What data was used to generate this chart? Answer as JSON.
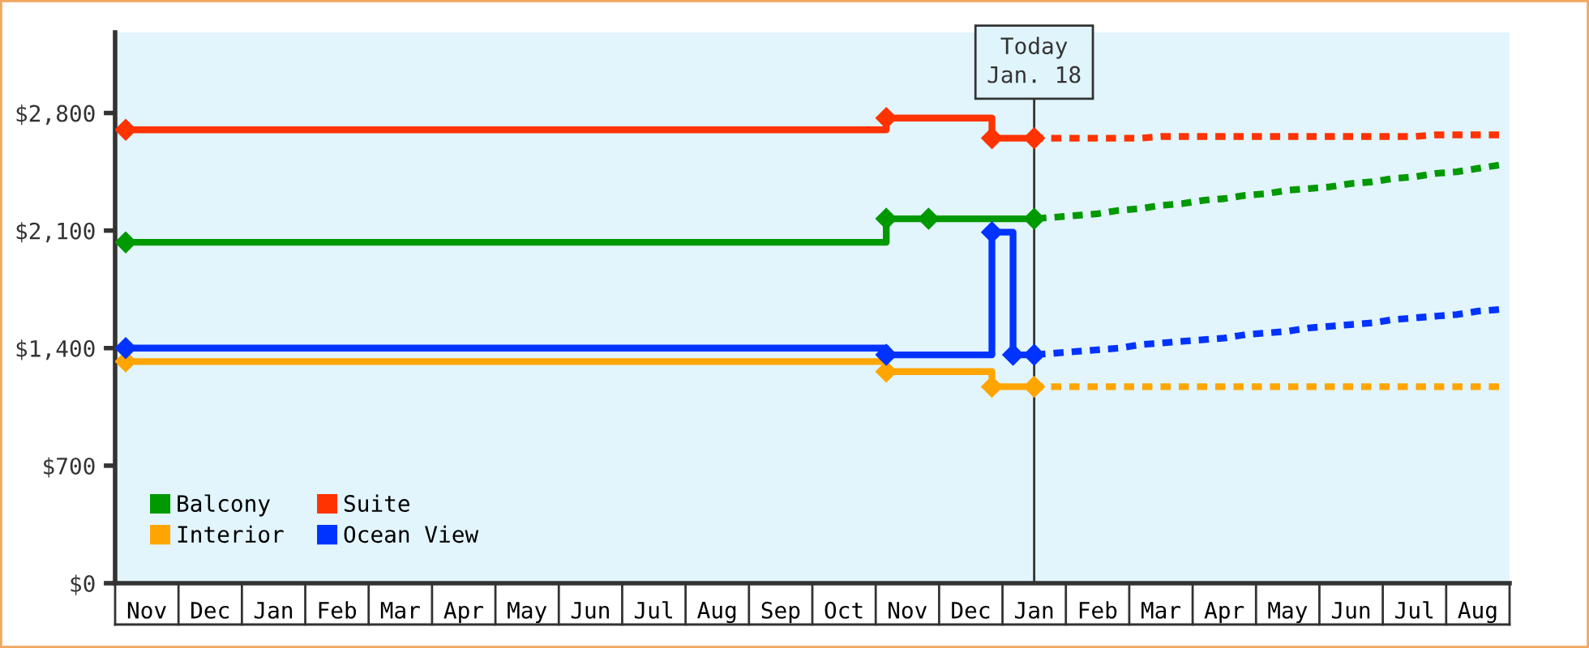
{
  "chart_data": {
    "type": "step",
    "categories": [
      null,
      "Nov",
      null,
      null,
      "Dec",
      null,
      null,
      "Jan",
      null,
      null,
      "Feb",
      null,
      null,
      "Mar",
      null,
      null,
      "Apr",
      null,
      null,
      "May",
      null,
      null,
      "Jun",
      null,
      null,
      "Jul",
      null,
      null,
      "Aug",
      null,
      null,
      "Sep",
      null,
      null,
      "Oct",
      null,
      null,
      "Nov",
      null,
      null,
      "Dec",
      null,
      null,
      "Jan",
      null,
      null,
      "Feb",
      null,
      null,
      "Mar",
      null,
      null,
      "Apr",
      null,
      null,
      "May",
      null,
      null,
      "Jun",
      null,
      null,
      "Jul",
      null,
      null,
      "Aug",
      null
    ],
    "series": [
      {
        "name": "Balcony",
        "color": "#009900",
        "values": [
          2030,
          null,
          null,
          null,
          null,
          null,
          null,
          null,
          null,
          null,
          null,
          null,
          null,
          null,
          null,
          null,
          null,
          null,
          null,
          null,
          null,
          null,
          null,
          null,
          null,
          null,
          null,
          null,
          null,
          null,
          null,
          null,
          null,
          null,
          null,
          null,
          2170,
          null,
          2170,
          null,
          null,
          null,
          null,
          2170,
          null,
          null,
          null,
          null,
          null,
          null,
          null,
          null,
          null,
          null,
          null,
          null,
          null,
          null,
          null,
          null,
          null,
          null,
          null,
          null,
          null,
          null
        ]
      },
      {
        "name": "Interior",
        "color": "#ffa500",
        "values": [
          1320,
          null,
          null,
          null,
          null,
          null,
          null,
          null,
          null,
          null,
          null,
          null,
          null,
          null,
          null,
          null,
          null,
          null,
          null,
          null,
          null,
          null,
          null,
          null,
          null,
          null,
          null,
          null,
          null,
          null,
          null,
          null,
          null,
          null,
          null,
          null,
          1260,
          null,
          null,
          null,
          null,
          1170,
          null,
          1170,
          null,
          null,
          null,
          null,
          null,
          null,
          null,
          null,
          null,
          null,
          null,
          null,
          null,
          null,
          null,
          null,
          null,
          null,
          null,
          null,
          null,
          null
        ]
      },
      {
        "name": "Suite",
        "color": "#ff3300",
        "values": [
          2700,
          null,
          null,
          null,
          null,
          null,
          null,
          null,
          null,
          null,
          null,
          null,
          null,
          null,
          null,
          null,
          null,
          null,
          null,
          null,
          null,
          null,
          null,
          null,
          null,
          null,
          null,
          null,
          null,
          null,
          null,
          null,
          null,
          null,
          null,
          null,
          2770,
          null,
          null,
          null,
          null,
          2650,
          null,
          2650,
          null,
          null,
          null,
          null,
          null,
          null,
          null,
          null,
          null,
          null,
          null,
          null,
          null,
          null,
          null,
          null,
          null,
          null,
          null,
          null,
          null,
          null
        ]
      },
      {
        "name": "Ocean View",
        "color": "#0033ff",
        "values": [
          1400,
          null,
          null,
          null,
          null,
          null,
          null,
          null,
          null,
          null,
          null,
          null,
          null,
          null,
          null,
          null,
          null,
          null,
          null,
          null,
          null,
          null,
          null,
          null,
          null,
          null,
          null,
          null,
          null,
          null,
          null,
          null,
          null,
          null,
          null,
          null,
          1360,
          null,
          null,
          null,
          null,
          2090,
          1360,
          1360,
          null,
          null,
          null,
          null,
          null,
          null,
          null,
          null,
          null,
          null,
          null,
          null,
          null,
          null,
          null,
          null,
          null,
          null,
          null,
          null,
          null,
          null
        ]
      },
      {
        "type": "line",
        "line_style": "dotted",
        "marker": "none",
        "color": "#009900",
        "values": [
          null,
          null,
          null,
          null,
          null,
          null,
          null,
          null,
          null,
          null,
          null,
          null,
          null,
          null,
          null,
          null,
          null,
          null,
          null,
          null,
          null,
          null,
          null,
          null,
          null,
          null,
          null,
          null,
          null,
          null,
          null,
          null,
          null,
          null,
          null,
          null,
          null,
          null,
          null,
          null,
          null,
          null,
          null,
          2170,
          2180,
          2190,
          2200,
          2220,
          2230,
          2250,
          2260,
          2280,
          2290,
          2310,
          2320,
          2340,
          2350,
          2360,
          2380,
          2390,
          2410,
          2420,
          2440,
          2450,
          2470,
          2490
        ]
      },
      {
        "type": "line",
        "line_style": "dotted",
        "marker": "none",
        "color": "#ffa500",
        "values": [
          null,
          null,
          null,
          null,
          null,
          null,
          null,
          null,
          null,
          null,
          null,
          null,
          null,
          null,
          null,
          null,
          null,
          null,
          null,
          null,
          null,
          null,
          null,
          null,
          null,
          null,
          null,
          null,
          null,
          null,
          null,
          null,
          null,
          null,
          null,
          null,
          null,
          null,
          null,
          null,
          null,
          null,
          null,
          1170,
          1170,
          1170,
          1170,
          1170,
          1170,
          1170,
          1170,
          1170,
          1170,
          1170,
          1170,
          1170,
          1170,
          1170,
          1170,
          1170,
          1170,
          1170,
          1170,
          1170,
          1170,
          1170
        ]
      },
      {
        "type": "line",
        "line_style": "dotted",
        "marker": "none",
        "color": "#ff3300",
        "values": [
          null,
          null,
          null,
          null,
          null,
          null,
          null,
          null,
          null,
          null,
          null,
          null,
          null,
          null,
          null,
          null,
          null,
          null,
          null,
          null,
          null,
          null,
          null,
          null,
          null,
          null,
          null,
          null,
          null,
          null,
          null,
          null,
          null,
          null,
          null,
          null,
          null,
          null,
          null,
          null,
          null,
          null,
          null,
          2650,
          2650,
          2650,
          2650,
          2650,
          2650,
          2660,
          2660,
          2660,
          2660,
          2660,
          2660,
          2660,
          2660,
          2660,
          2660,
          2660,
          2660,
          2660,
          2670,
          2670,
          2670,
          2670
        ]
      },
      {
        "type": "line",
        "line_style": "dotted",
        "marker": "none",
        "color": "#0033ff",
        "values": [
          null,
          null,
          null,
          null,
          null,
          null,
          null,
          null,
          null,
          null,
          null,
          null,
          null,
          null,
          null,
          null,
          null,
          null,
          null,
          null,
          null,
          null,
          null,
          null,
          null,
          null,
          null,
          null,
          null,
          null,
          null,
          null,
          null,
          null,
          null,
          null,
          null,
          null,
          null,
          null,
          null,
          null,
          null,
          1360,
          1370,
          1380,
          1390,
          1400,
          1420,
          1430,
          1440,
          1450,
          1460,
          1480,
          1490,
          1500,
          1520,
          1530,
          1540,
          1550,
          1570,
          1580,
          1590,
          1600,
          1620,
          1630
        ]
      }
    ],
    "marker": "diamond",
    "line_style": "solid",
    "ylim": [
      0,
      3280
    ],
    "yticks": [
      {
        "value": 0,
        "label": "$0"
      },
      {
        "value": 700,
        "label": "$700"
      },
      {
        "value": 1400,
        "label": "$1,400"
      },
      {
        "value": 2100,
        "label": "$2,100"
      },
      {
        "value": 2800,
        "label": "$2,800"
      }
    ],
    "annotations": [
      "Today\nJan. 18"
    ],
    "legend": "bottom left"
  }
}
